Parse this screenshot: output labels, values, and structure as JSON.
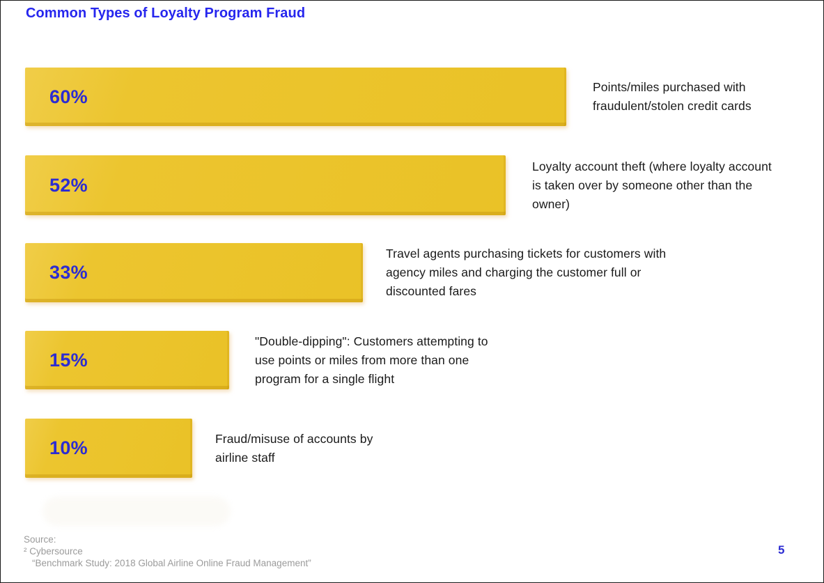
{
  "title": "Common Types of Loyalty Program Fraud",
  "colors": {
    "title_blue": "#2626ee",
    "percent_blue": "#2c2cd2",
    "bar_yellow": "#ecc52f",
    "bar_edge_dark": "#d3a41a",
    "label_text": "#1a1a1a",
    "footer_gray": "#9b9b9b"
  },
  "chart_data": {
    "type": "bar",
    "orientation": "horizontal",
    "title": "Common Types of Loyalty Program Fraud",
    "unit": "%",
    "categories": [
      "Points/miles purchased with fraudulent/stolen credit cards",
      "Loyalty account theft (where loyalty account is taken over by someone other than the owner)",
      "Travel agents purchasing tickets for customers with agency miles and charging the customer full or discounted fares",
      "\"Double-dipping\": Customers attempting to use points or miles from more than one program for a single flight",
      "Fraud/misuse of accounts by airline staff"
    ],
    "values": [
      60,
      52,
      33,
      15,
      10
    ],
    "value_labels": [
      "60%",
      "52%",
      "33%",
      "15%",
      "10%"
    ],
    "xlabel": "",
    "ylabel": "",
    "grid": false,
    "legend": false,
    "value_label_position": "inside-left",
    "category_label_position": "right-of-bar"
  },
  "bars": [
    {
      "value": "60%",
      "label": "Points/miles purchased with fraudulent/stolen credit cards"
    },
    {
      "value": "52%",
      "label": "Loyalty account theft (where loyalty account is taken over by someone other than the owner)"
    },
    {
      "value": "33%",
      "label": "Travel agents purchasing tickets for customers with agency miles and charging the customer full or discounted fares"
    },
    {
      "value": "15%",
      "label": "\"Double-dipping\": Customers attempting to use points or miles from more than one program for a single flight"
    },
    {
      "value": "10%",
      "label": "Fraud/misuse of accounts by airline staff"
    }
  ],
  "footer": {
    "source_label": "Source:",
    "source_name": "² Cybersource",
    "source_title": "“Benchmark Study: 2018 Global Airline Online Fraud Management”",
    "page_number": "5"
  }
}
